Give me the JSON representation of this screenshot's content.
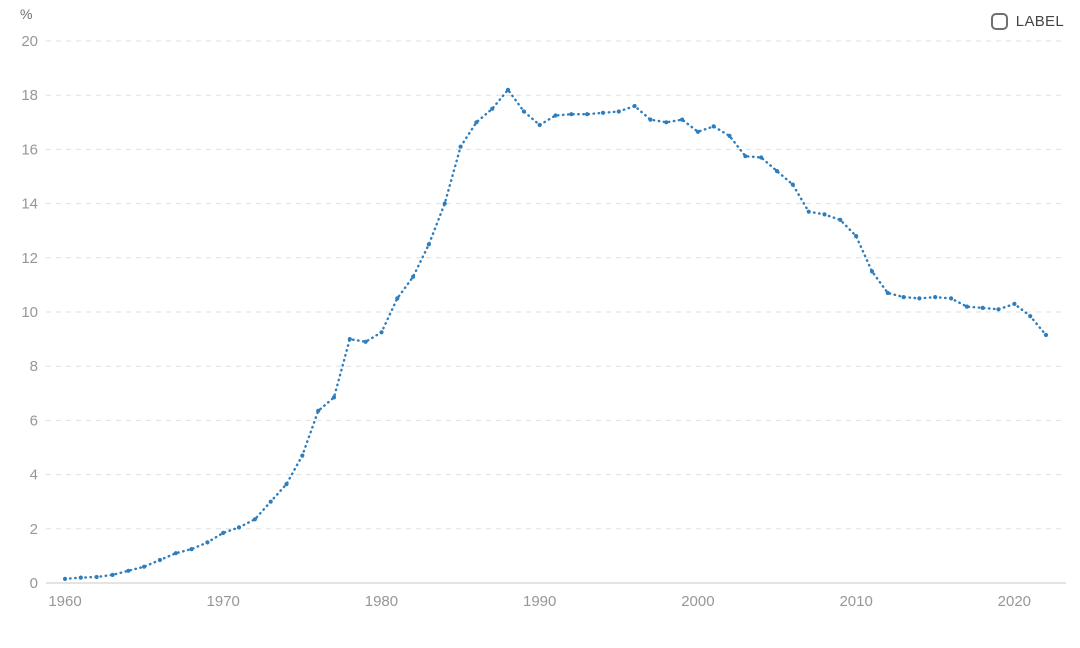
{
  "chart": {
    "unit": "%",
    "legend": {
      "label": "LABEL"
    }
  },
  "chart_data": {
    "type": "line",
    "title": "",
    "xlabel": "",
    "ylabel": "%",
    "ylim": [
      0,
      20
    ],
    "ytick_step": 2,
    "xticks": [
      1960,
      1970,
      1980,
      1990,
      2000,
      2010,
      2020
    ],
    "grid": "horizontal-dashed",
    "legend_position": "top-right",
    "line_style": "dotted-with-markers",
    "x": [
      1960,
      1961,
      1962,
      1963,
      1964,
      1965,
      1966,
      1967,
      1968,
      1969,
      1970,
      1971,
      1972,
      1973,
      1974,
      1975,
      1976,
      1977,
      1978,
      1979,
      1980,
      1981,
      1982,
      1983,
      1984,
      1985,
      1986,
      1987,
      1988,
      1989,
      1990,
      1991,
      1992,
      1993,
      1994,
      1995,
      1996,
      1997,
      1998,
      1999,
      2000,
      2001,
      2002,
      2003,
      2004,
      2005,
      2006,
      2007,
      2008,
      2009,
      2010,
      2011,
      2012,
      2013,
      2014,
      2015,
      2016,
      2017,
      2018,
      2019,
      2020,
      2021,
      2022
    ],
    "series": [
      {
        "name": "LABEL",
        "color": "#2e7dbc",
        "values": [
          0.15,
          0.2,
          0.22,
          0.3,
          0.45,
          0.6,
          0.85,
          1.1,
          1.25,
          1.5,
          1.85,
          2.05,
          2.35,
          3.0,
          3.65,
          4.7,
          6.35,
          6.85,
          9.0,
          8.9,
          9.25,
          10.5,
          11.3,
          12.5,
          14.0,
          16.1,
          17.0,
          17.5,
          18.2,
          17.4,
          16.9,
          17.25,
          17.3,
          17.3,
          17.35,
          17.4,
          17.6,
          17.1,
          17.0,
          17.1,
          16.65,
          16.85,
          16.5,
          15.75,
          15.7,
          15.2,
          14.7,
          13.7,
          13.6,
          13.4,
          12.8,
          11.5,
          10.7,
          10.55,
          10.5,
          10.55,
          10.5,
          10.2,
          10.15,
          10.1,
          10.3,
          9.85,
          9.15
        ]
      }
    ]
  }
}
